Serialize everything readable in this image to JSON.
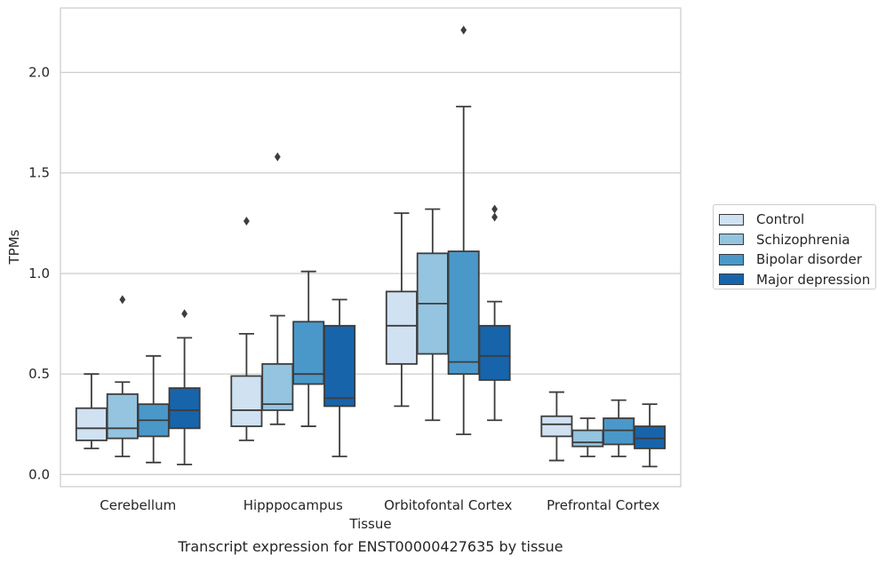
{
  "caption": "Transcript expression for ENST00000427635 by tissue",
  "chart_data": {
    "type": "box",
    "xlabel": "Tissue",
    "ylabel": "TPMs",
    "categories": [
      "Cerebellum",
      "Hipppocampus",
      "Orbitofontal Cortex",
      "Prefrontal Cortex"
    ],
    "ylim": [
      -0.06,
      2.32
    ],
    "yticks": [
      0.0,
      0.5,
      1.0,
      1.5,
      2.0
    ],
    "ytick_labels": [
      "0.0",
      "0.5",
      "1.0",
      "1.5",
      "2.0"
    ],
    "grid": true,
    "legend_position": "right",
    "series": [
      {
        "name": "Control",
        "color": "#d0e1f2",
        "boxes": [
          {
            "whislo": 0.13,
            "q1": 0.17,
            "med": 0.23,
            "q3": 0.33,
            "whishi": 0.5,
            "fliers": []
          },
          {
            "whislo": 0.17,
            "q1": 0.24,
            "med": 0.32,
            "q3": 0.49,
            "whishi": 0.7,
            "fliers": [
              1.26
            ]
          },
          {
            "whislo": 0.34,
            "q1": 0.55,
            "med": 0.74,
            "q3": 0.91,
            "whishi": 1.3,
            "fliers": []
          },
          {
            "whislo": 0.07,
            "q1": 0.19,
            "med": 0.25,
            "q3": 0.29,
            "whishi": 0.41,
            "fliers": []
          }
        ]
      },
      {
        "name": "Schizophrenia",
        "color": "#94c4df",
        "boxes": [
          {
            "whislo": 0.09,
            "q1": 0.18,
            "med": 0.23,
            "q3": 0.4,
            "whishi": 0.46,
            "fliers": [
              0.87
            ]
          },
          {
            "whislo": 0.25,
            "q1": 0.32,
            "med": 0.35,
            "q3": 0.55,
            "whishi": 0.79,
            "fliers": [
              1.58
            ]
          },
          {
            "whislo": 0.27,
            "q1": 0.6,
            "med": 0.85,
            "q3": 1.1,
            "whishi": 1.32,
            "fliers": []
          },
          {
            "whislo": 0.09,
            "q1": 0.14,
            "med": 0.16,
            "q3": 0.22,
            "whishi": 0.28,
            "fliers": []
          }
        ]
      },
      {
        "name": "Bipolar disorder",
        "color": "#4a98c9",
        "boxes": [
          {
            "whislo": 0.06,
            "q1": 0.19,
            "med": 0.27,
            "q3": 0.35,
            "whishi": 0.59,
            "fliers": []
          },
          {
            "whislo": 0.24,
            "q1": 0.45,
            "med": 0.5,
            "q3": 0.76,
            "whishi": 1.01,
            "fliers": []
          },
          {
            "whislo": 0.2,
            "q1": 0.5,
            "med": 0.56,
            "q3": 1.11,
            "whishi": 1.83,
            "fliers": [
              2.21
            ]
          },
          {
            "whislo": 0.09,
            "q1": 0.15,
            "med": 0.22,
            "q3": 0.28,
            "whishi": 0.37,
            "fliers": []
          }
        ]
      },
      {
        "name": "Major depression",
        "color": "#1764ab",
        "boxes": [
          {
            "whislo": 0.05,
            "q1": 0.23,
            "med": 0.32,
            "q3": 0.43,
            "whishi": 0.68,
            "fliers": [
              0.8
            ]
          },
          {
            "whislo": 0.09,
            "q1": 0.34,
            "med": 0.38,
            "q3": 0.74,
            "whishi": 0.87,
            "fliers": []
          },
          {
            "whislo": 0.27,
            "q1": 0.47,
            "med": 0.59,
            "q3": 0.74,
            "whishi": 0.86,
            "fliers": [
              1.28,
              1.32
            ]
          },
          {
            "whislo": 0.04,
            "q1": 0.13,
            "med": 0.18,
            "q3": 0.24,
            "whishi": 0.35,
            "fliers": []
          }
        ]
      }
    ]
  }
}
